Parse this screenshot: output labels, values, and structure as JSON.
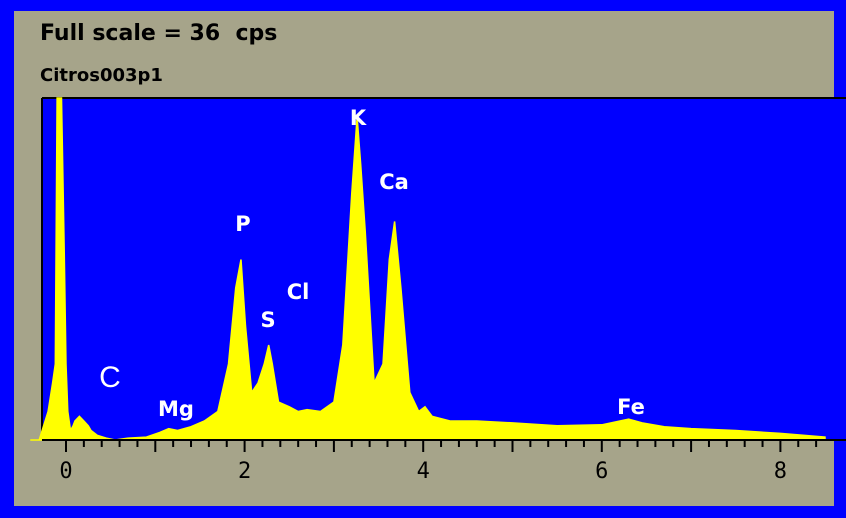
{
  "header": {
    "full_scale": "Full scale = 36  cps",
    "spectrum_name": "Citros003p1"
  },
  "chart_data": {
    "type": "line",
    "title": "",
    "xlabel": "",
    "ylabel": "",
    "xlim": [
      -0.45,
      8.5
    ],
    "ylim": [
      0,
      36
    ],
    "x_ticks": [
      "0",
      "2",
      "4",
      "6",
      "8"
    ],
    "x_tick_values": [
      0,
      2,
      4,
      6,
      8
    ],
    "grid": false,
    "colors": {
      "plot_bg": "#0000ff",
      "trace": "#ffff00",
      "panel": "#a6a48a"
    },
    "series": [
      {
        "x": [
          -0.4,
          -0.3,
          -0.2,
          -0.15,
          -0.12,
          -0.1,
          -0.08,
          -0.05,
          -0.02,
          0,
          0.02,
          0.05,
          0.08,
          0.1,
          0.15,
          0.2,
          0.25,
          0.28,
          0.35,
          0.45,
          0.55,
          0.7,
          0.9,
          1.05,
          1.15,
          1.25,
          1.4,
          1.55,
          1.7,
          1.82,
          1.9,
          1.96,
          2.01,
          2.08,
          2.15,
          2.22,
          2.27,
          2.31,
          2.38,
          2.5,
          2.6,
          2.7,
          2.85,
          3.0,
          3.1,
          3.2,
          3.26,
          3.3,
          3.35,
          3.45,
          3.55,
          3.62,
          3.68,
          3.75,
          3.85,
          3.95,
          4.02,
          4.1,
          4.3,
          4.6,
          5.0,
          5.5,
          6.0,
          6.3,
          6.45,
          6.7,
          7.0,
          7.5,
          8.0,
          8.5
        ],
        "values": [
          0,
          0,
          3,
          6,
          8,
          36,
          36,
          36,
          20,
          8,
          3,
          1,
          1.5,
          2,
          2.5,
          2,
          1.5,
          1,
          0.5,
          0.2,
          0,
          0.2,
          0.3,
          0.8,
          1.2,
          1.0,
          1.4,
          2,
          3,
          8,
          16,
          19,
          12,
          5,
          6,
          8,
          10,
          8,
          4,
          3.5,
          3,
          3.2,
          3,
          4,
          10,
          26,
          34,
          29,
          22,
          6,
          8,
          19,
          23,
          16,
          5,
          3,
          3.5,
          2.5,
          2,
          2,
          1.8,
          1.5,
          1.6,
          2.2,
          1.8,
          1.4,
          1.2,
          1,
          0.7,
          0.3
        ]
      }
    ],
    "annotations": [
      {
        "text": "K",
        "x": 3.26
      },
      {
        "text": "Ca",
        "x": 3.62
      },
      {
        "text": "P",
        "x": 1.96
      },
      {
        "text": "Cl",
        "x": 2.35
      },
      {
        "text": "S",
        "x": 2.22
      },
      {
        "text": "C",
        "x": 0.28
      },
      {
        "text": "Mg",
        "x": 1.25
      },
      {
        "text": "Fe",
        "x": 6.45
      }
    ]
  }
}
